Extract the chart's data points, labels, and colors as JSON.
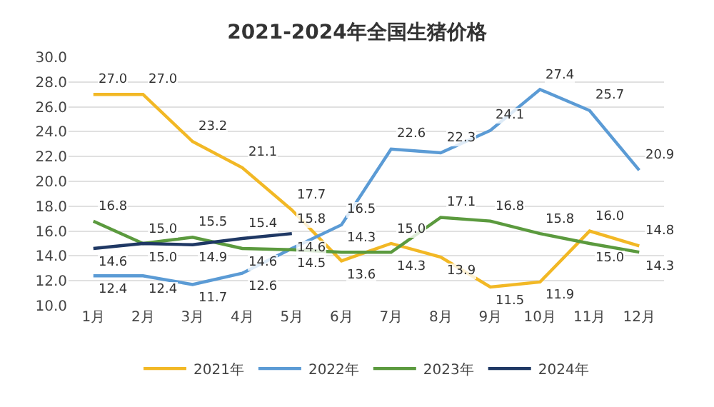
{
  "chart_data": {
    "type": "line",
    "title": "2021-2024年全国生猪价格",
    "categories": [
      "1月",
      "2月",
      "3月",
      "4月",
      "5月",
      "6月",
      "7月",
      "8月",
      "9月",
      "10月",
      "11月",
      "12月"
    ],
    "series": [
      {
        "name": "2021年",
        "color": "#f2b825",
        "values": [
          27.0,
          27.0,
          23.2,
          21.1,
          17.7,
          13.6,
          15.0,
          13.9,
          11.5,
          11.9,
          16.0,
          14.8
        ],
        "value_labels": [
          "27.0",
          "27.0",
          "23.2",
          "21.1",
          "17.7",
          "13.6",
          "15.0",
          "13.9",
          "11.5",
          "11.9",
          "16.0",
          "14.8"
        ]
      },
      {
        "name": "2022年",
        "color": "#5b9bd5",
        "values": [
          12.4,
          12.4,
          11.7,
          12.6,
          14.6,
          16.5,
          22.6,
          22.3,
          24.1,
          27.4,
          25.7,
          20.9
        ],
        "value_labels": [
          "12.4",
          "12.4",
          "11.7",
          "12.6",
          "14.6",
          "16.5",
          "22.6",
          "22.3",
          "24.1",
          "27.4",
          "25.7",
          "20.9"
        ]
      },
      {
        "name": "2023年",
        "color": "#5b9a3e",
        "values": [
          16.8,
          15.0,
          15.5,
          14.6,
          14.5,
          14.3,
          14.3,
          17.1,
          16.8,
          15.8,
          15.0,
          14.3
        ],
        "value_labels": [
          "16.8",
          "15.0",
          "15.5",
          "14.6",
          "14.5",
          "14.3",
          "14.3",
          "17.1",
          "16.8",
          "15.8",
          "15.0",
          "14.3"
        ]
      },
      {
        "name": "2024年",
        "color": "#1f3864",
        "values": [
          14.6,
          15.0,
          14.9,
          15.4,
          15.8,
          null,
          null,
          null,
          null,
          null,
          null,
          null
        ],
        "value_labels": [
          "14.6",
          "15.0",
          "14.9",
          "15.4",
          "15.8",
          null,
          null,
          null,
          null,
          null,
          null,
          null
        ]
      }
    ],
    "ylim": [
      10,
      30
    ],
    "yticks": [
      {
        "value": 10,
        "label": "10.0"
      },
      {
        "value": 12,
        "label": "12.0"
      },
      {
        "value": 14,
        "label": "14.0"
      },
      {
        "value": 16,
        "label": "16.0"
      },
      {
        "value": 18,
        "label": "18.0"
      },
      {
        "value": 20,
        "label": "20.0"
      },
      {
        "value": 22,
        "label": "22.0"
      },
      {
        "value": 24,
        "label": "24.0"
      },
      {
        "value": 26,
        "label": "26.0"
      },
      {
        "value": 28,
        "label": "28.0"
      },
      {
        "value": 30,
        "label": "30.0"
      }
    ],
    "grid": "y",
    "legend": "bottom",
    "marker": "none",
    "line_style": "solid"
  }
}
